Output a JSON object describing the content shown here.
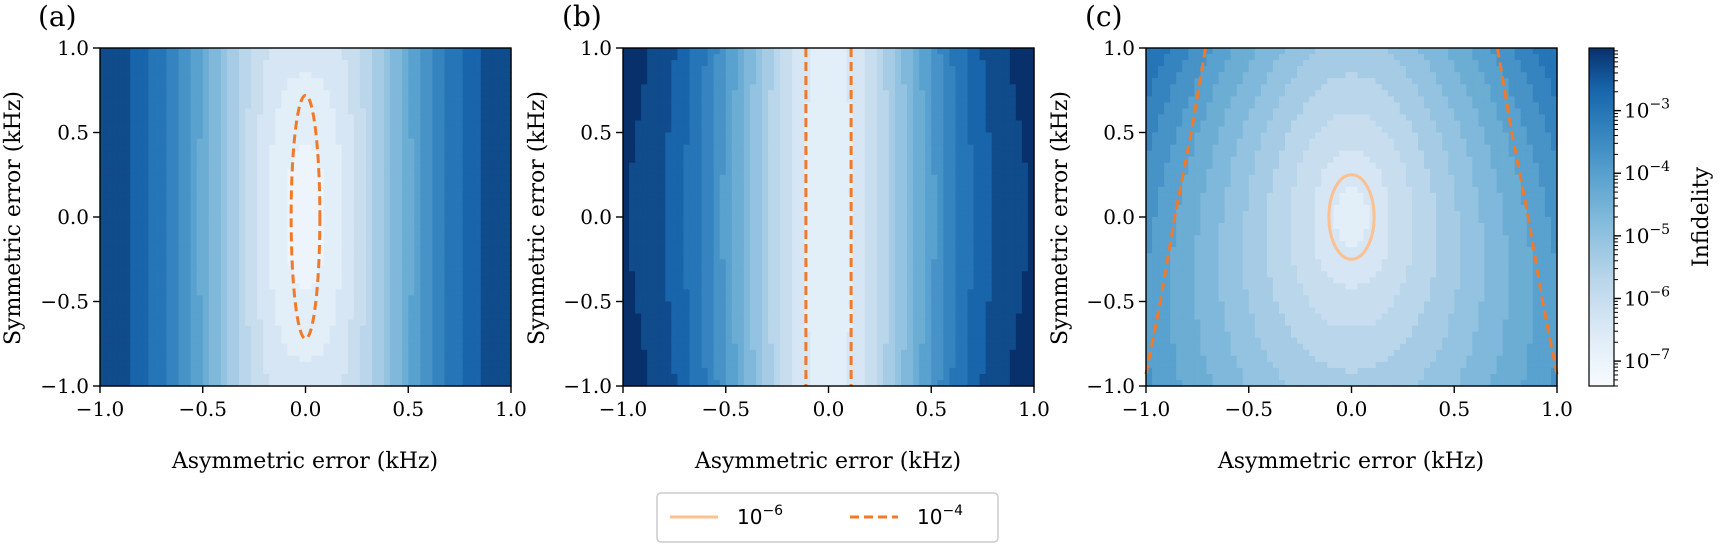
{
  "chart_data": {
    "type": "heatmap",
    "panels": [
      {
        "label": "(a)",
        "xlabel": "Asymmetric error (kHz)",
        "ylabel": "Symmetric error (kHz)",
        "xlim": [
          -1.0,
          1.0
        ],
        "ylim": [
          -1.0,
          1.0
        ],
        "xticks": [
          "−1.0",
          "−0.5",
          "0.0",
          "0.5",
          "1.0"
        ],
        "yticks": [
          "−1.0",
          "−0.5",
          "0.0",
          "0.5",
          "1.0"
        ],
        "contours": [
          {
            "level": "1e-4",
            "shape": "ellipse",
            "center": [
              0.0,
              0.0
            ],
            "half_width_x": 0.07,
            "half_width_y": 0.72
          }
        ]
      },
      {
        "label": "(b)",
        "xlabel": "Asymmetric error (kHz)",
        "ylabel": "Symmetric error (kHz)",
        "xlim": [
          -1.0,
          1.0
        ],
        "ylim": [
          -1.0,
          1.0
        ],
        "xticks": [
          "−1.0",
          "−0.5",
          "0.0",
          "0.5",
          "1.0"
        ],
        "yticks": [
          "−1.0",
          "−0.5",
          "0.0",
          "0.5",
          "1.0"
        ],
        "contours": [
          {
            "level": "1e-4",
            "shape": "vertical_lines",
            "x": [
              -0.11,
              0.11
            ]
          }
        ]
      },
      {
        "label": "(c)",
        "xlabel": "Asymmetric error (kHz)",
        "ylabel": "Symmetric error (kHz)",
        "xlim": [
          -1.0,
          1.0
        ],
        "ylim": [
          -1.0,
          1.0
        ],
        "xticks": [
          "−1.0",
          "−0.5",
          "0.0",
          "0.5",
          "1.0"
        ],
        "yticks": [
          "−1.0",
          "−0.5",
          "0.0",
          "0.5",
          "1.0"
        ],
        "contours": [
          {
            "level": "1e-6",
            "shape": "ellipse",
            "center": [
              0.0,
              0.0
            ],
            "half_width_x": 0.11,
            "half_width_y": 0.25
          },
          {
            "level": "1e-4",
            "shape": "curve_left",
            "points": [
              [
                -1.0,
                -0.93
              ],
              [
                -0.93,
                -0.5
              ],
              [
                -0.86,
                0.0
              ],
              [
                -0.78,
                0.5
              ],
              [
                -0.71,
                1.0
              ]
            ]
          },
          {
            "level": "1e-4",
            "shape": "curve_right",
            "points": [
              [
                1.0,
                -0.93
              ],
              [
                0.93,
                -0.5
              ],
              [
                0.86,
                0.0
              ],
              [
                0.78,
                0.5
              ],
              [
                0.71,
                1.0
              ]
            ]
          }
        ]
      }
    ],
    "colorbar": {
      "label": "Infidelity",
      "scale": "log",
      "range": [
        4e-08,
        0.01
      ],
      "ticks": [
        "10",
        "10",
        "10",
        "10",
        "10"
      ],
      "tick_exponents": [
        "−3",
        "−4",
        "−5",
        "−6",
        "−7"
      ],
      "tick_values": [
        0.001,
        0.0001,
        1e-05,
        1e-06,
        1e-07
      ],
      "colormap": "Blues"
    },
    "legend": {
      "placement": "bottom-center",
      "entries": [
        {
          "base": "10",
          "exponent": "−6",
          "color": "#fdc08e",
          "style": "solid"
        },
        {
          "base": "10",
          "exponent": "−4",
          "color": "#f07a2a",
          "style": "dashed"
        }
      ]
    }
  }
}
